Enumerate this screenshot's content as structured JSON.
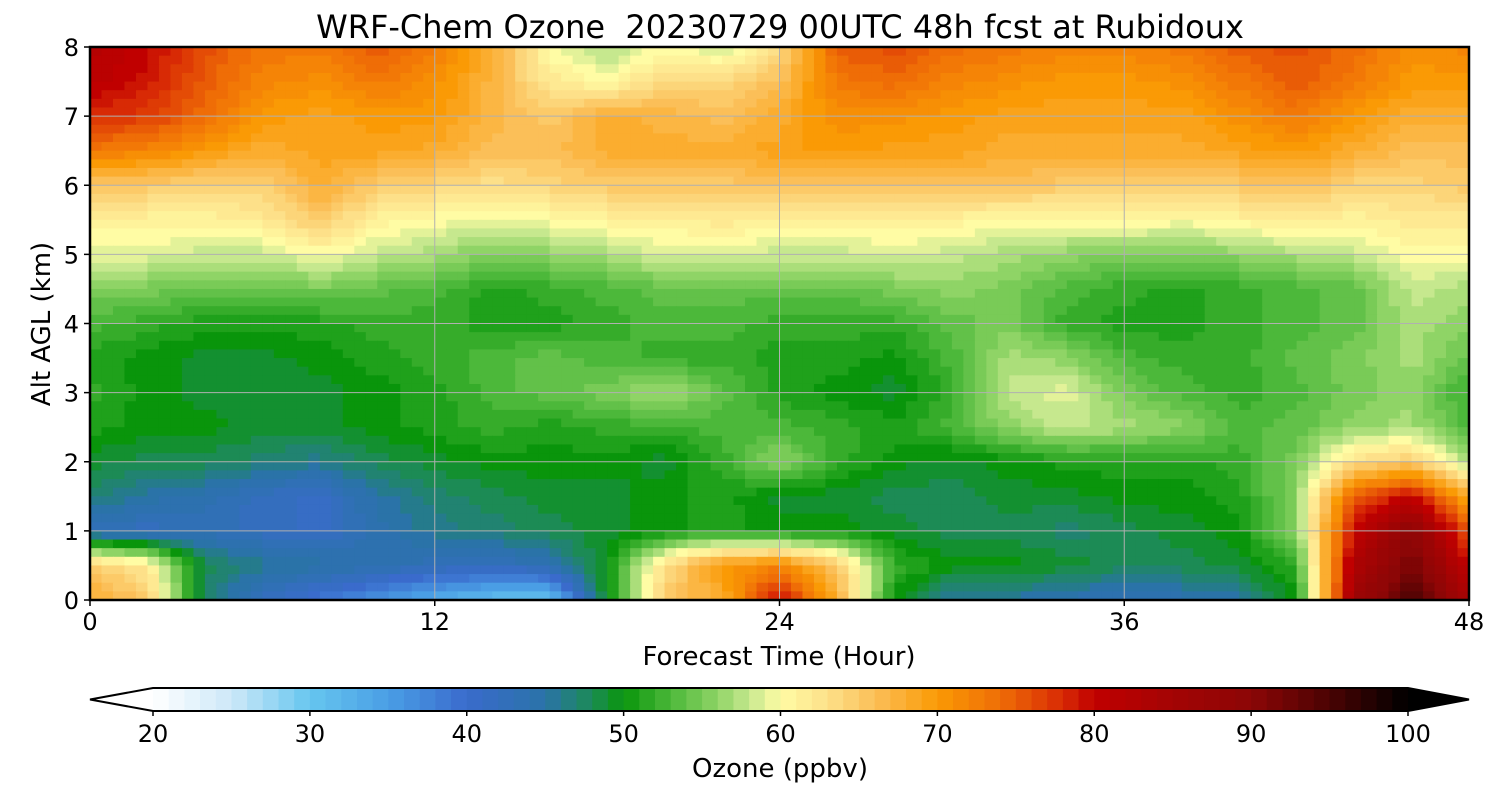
{
  "chart_data": {
    "type": "heatmap",
    "title": "WRF-Chem Ozone  20230729 00UTC 48h fcst at Rubidoux",
    "xlabel": "Forecast Time (Hour)",
    "ylabel": "Alt AGL (km)",
    "xlim": [
      0,
      48
    ],
    "ylim": [
      0,
      8
    ],
    "xticks": [
      "0",
      "12",
      "24",
      "36",
      "48"
    ],
    "yticks": [
      "0",
      "1",
      "2",
      "3",
      "4",
      "5",
      "6",
      "7",
      "8"
    ],
    "grid": true,
    "x_hours": [
      0,
      2,
      4,
      6,
      8,
      10,
      12,
      14,
      16,
      18,
      20,
      22,
      24,
      26,
      28,
      30,
      32,
      34,
      36,
      38,
      40,
      42,
      44,
      46,
      48
    ],
    "y_km": [
      0.0,
      0.5,
      1.0,
      1.5,
      2.0,
      2.5,
      3.0,
      3.5,
      4.0,
      4.5,
      5.0,
      5.5,
      6.0,
      6.5,
      7.0,
      7.5,
      8.0
    ],
    "ozone_ppbv": [
      [
        68,
        65,
        47,
        42,
        39,
        36,
        33,
        31,
        30,
        50,
        65,
        68,
        80,
        68,
        50,
        45,
        45,
        44,
        43,
        44,
        45,
        50,
        86,
        95,
        85
      ],
      [
        65,
        62,
        48,
        46,
        45,
        44,
        43,
        42,
        44,
        50,
        63,
        70,
        72,
        65,
        52,
        50,
        50,
        49,
        48,
        48,
        49,
        52,
        83,
        92,
        80
      ],
      [
        43,
        42,
        43,
        42,
        41,
        44,
        46,
        47,
        48,
        49,
        50,
        51,
        50,
        50,
        49,
        48,
        48,
        47,
        48,
        49,
        50,
        56,
        80,
        90,
        75
      ],
      [
        47,
        45,
        44,
        42,
        41,
        45,
        47,
        48,
        49,
        49,
        50,
        51,
        49,
        49,
        48,
        48,
        49,
        49,
        50,
        50,
        51,
        56,
        75,
        80,
        68
      ],
      [
        49,
        48,
        48,
        47,
        46,
        48,
        49,
        50,
        50,
        50,
        49,
        52,
        56,
        52,
        50,
        49,
        50,
        51,
        51,
        51,
        52,
        55,
        63,
        65,
        57
      ],
      [
        51,
        50,
        50,
        49,
        49,
        50,
        51,
        52,
        51,
        52,
        52,
        53,
        53,
        52,
        51,
        53,
        56,
        58,
        57,
        56,
        53,
        54,
        56,
        57,
        53
      ],
      [
        52,
        50,
        49,
        49,
        49,
        50,
        51,
        53,
        54,
        55,
        57,
        54,
        51,
        50,
        49,
        52,
        58,
        59,
        55,
        53,
        52,
        53,
        55,
        56,
        52
      ],
      [
        51,
        50,
        49,
        49,
        50,
        51,
        52,
        53,
        54,
        53,
        52,
        52,
        51,
        51,
        50,
        53,
        57,
        56,
        53,
        52,
        52,
        54,
        55,
        57,
        54
      ],
      [
        53,
        52,
        51,
        51,
        51,
        52,
        52,
        51,
        51,
        52,
        53,
        53,
        52,
        52,
        52,
        54,
        55,
        52,
        51,
        51,
        52,
        53,
        54,
        57,
        56
      ],
      [
        55,
        55,
        54,
        54,
        55,
        54,
        53,
        51,
        52,
        53,
        54,
        54,
        54,
        54,
        55,
        56,
        55,
        53,
        52,
        51,
        52,
        53,
        54,
        58,
        57
      ],
      [
        59,
        59,
        58,
        58,
        60,
        58,
        57,
        55,
        56,
        57,
        59,
        59,
        58,
        58,
        59,
        58,
        57,
        56,
        55,
        55,
        56,
        57,
        58,
        60,
        60
      ],
      [
        61,
        61,
        61,
        62,
        65,
        61,
        60,
        59,
        60,
        61,
        61,
        62,
        61,
        61,
        61,
        61,
        60,
        60,
        61,
        60,
        61,
        62,
        61,
        62,
        62
      ],
      [
        65,
        65,
        64,
        64,
        68,
        65,
        64,
        63,
        64,
        65,
        65,
        65,
        66,
        65,
        65,
        66,
        66,
        65,
        65,
        65,
        65,
        66,
        64,
        64,
        65
      ],
      [
        73,
        72,
        70,
        68,
        69,
        69,
        68,
        66,
        66,
        68,
        68,
        68,
        69,
        70,
        69,
        69,
        68,
        68,
        68,
        68,
        69,
        70,
        68,
        66,
        66
      ],
      [
        78,
        77,
        74,
        70,
        69,
        70,
        70,
        67,
        65,
        68,
        67,
        66,
        68,
        71,
        71,
        70,
        69,
        69,
        69,
        69,
        71,
        73,
        70,
        68,
        68
      ],
      [
        81,
        79,
        75,
        72,
        71,
        73,
        71,
        67,
        62,
        60,
        64,
        64,
        66,
        73,
        74,
        72,
        71,
        70,
        70,
        71,
        73,
        75,
        73,
        70,
        70
      ],
      [
        82,
        80,
        76,
        73,
        73,
        75,
        73,
        68,
        60,
        57,
        60,
        58,
        63,
        75,
        76,
        74,
        73,
        72,
        72,
        73,
        75,
        76,
        74,
        71,
        72
      ]
    ],
    "colorbar": {
      "label": "Ozone  (ppbv)",
      "ticks": [
        "20",
        "30",
        "40",
        "50",
        "60",
        "70",
        "80",
        "90",
        "100"
      ],
      "range": [
        20,
        100
      ],
      "extend": "both",
      "stops": [
        [
          20,
          "#ffffff"
        ],
        [
          25,
          "#cde8f8"
        ],
        [
          30,
          "#66c6ef"
        ],
        [
          35,
          "#4a9ee5"
        ],
        [
          40,
          "#3a6bcc"
        ],
        [
          45,
          "#2a73a8"
        ],
        [
          48,
          "#1c8b55"
        ],
        [
          50,
          "#09950b"
        ],
        [
          53,
          "#4cb83a"
        ],
        [
          56,
          "#8fd466"
        ],
        [
          58,
          "#c6e88e"
        ],
        [
          60,
          "#fffca4"
        ],
        [
          63,
          "#fde089"
        ],
        [
          66,
          "#fbbf58"
        ],
        [
          70,
          "#fa9a05"
        ],
        [
          74,
          "#ef6d06"
        ],
        [
          78,
          "#d82a05"
        ],
        [
          80,
          "#c00000"
        ],
        [
          85,
          "#a30404"
        ],
        [
          90,
          "#8c0606"
        ],
        [
          95,
          "#4a0303"
        ],
        [
          100,
          "#000000"
        ]
      ],
      "under_color": "#ffffff",
      "over_color": "#000000"
    }
  }
}
